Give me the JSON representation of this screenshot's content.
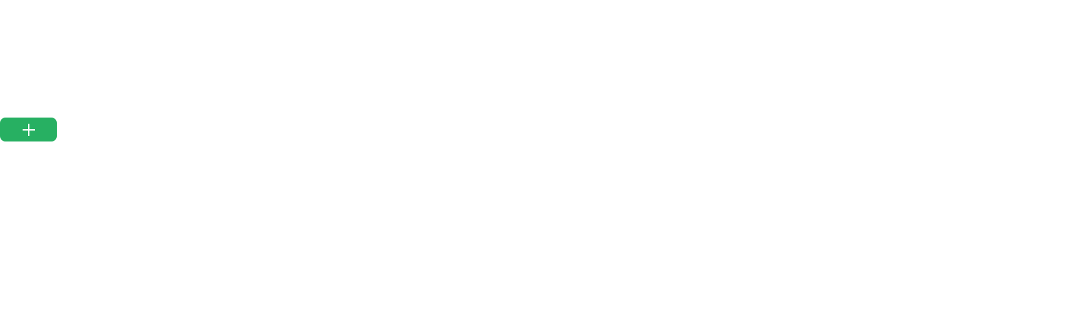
{
  "add_button": {
    "icon": "plus-icon",
    "background_color": "#27b062",
    "icon_color": "#ffffff"
  }
}
